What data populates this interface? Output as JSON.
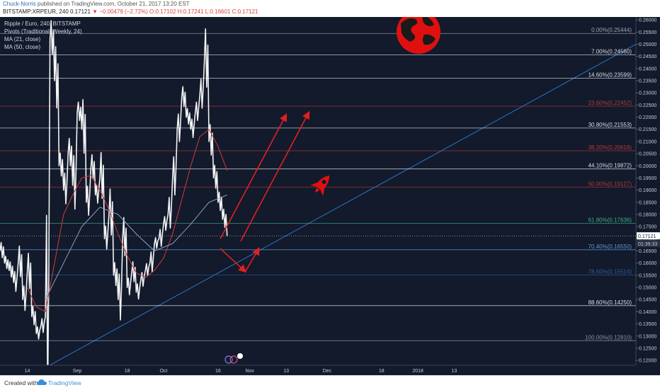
{
  "header": {
    "author": "Chuck-Norris",
    "published_text": "published on TradingView.com, October 21, 2017 13:20 EST",
    "symbol": "BITSTAMP:XRPEUR, 240",
    "last": "0.17121",
    "change": "−0.00479 (−2.72%)",
    "ohlc": "O:0.17102 H:0.17241 L:0.16601 C:0.17121"
  },
  "legend": {
    "title": "Ripple / Euro, 240, BITSTAMP",
    "pivots": "Pivots (Traditional, Weekly, 24)",
    "ma21": "MA (21, close)",
    "ma50": "MA (50, close)"
  },
  "footer": {
    "created_with": "Created with",
    "brand": "TradingView"
  },
  "colors": {
    "background": "#121a2b",
    "candle": "#ffffff",
    "ma21": "#d23b3b",
    "ma50": "#8aa0c8",
    "trendline": "#2f74c6",
    "arrow": "#e02020",
    "icon": "#e01010",
    "pivot_orange": "#d9822b",
    "pivot_blue": "#3a7fd6"
  },
  "price_axis": {
    "labels": [
      "0.26000",
      "0.25500",
      "0.25000",
      "0.24500",
      "0.24000",
      "0.23500",
      "0.23000",
      "0.22500",
      "0.22000",
      "0.21500",
      "0.21000",
      "0.20500",
      "0.20000",
      "0.19500",
      "0.19000",
      "0.18500",
      "0.18000",
      "0.17500",
      "0.17000",
      "0.16500",
      "0.16000",
      "0.15500",
      "0.15000",
      "0.14500",
      "0.14000",
      "0.13500",
      "0.13000",
      "0.12500",
      "0.12000"
    ],
    "current_price": "0.17121",
    "countdown": "01:39:33"
  },
  "time_axis": {
    "labels": [
      "14",
      "Sep",
      "18",
      "Oct",
      "16",
      "Nov",
      "13",
      "Dec",
      "18",
      "2018",
      "13"
    ]
  },
  "chart_data": {
    "type": "line",
    "title": "Ripple / Euro, 240, BITSTAMP",
    "xlabel": "",
    "ylabel": "",
    "ylim": [
      0.118,
      0.2612
    ],
    "xlim": [
      0,
      140
    ],
    "x_ticks": [
      {
        "x": 6,
        "label": "14"
      },
      {
        "x": 17,
        "label": "Sep"
      },
      {
        "x": 28,
        "label": "18"
      },
      {
        "x": 36,
        "label": "Oct"
      },
      {
        "x": 48,
        "label": "16"
      },
      {
        "x": 55,
        "label": "Nov"
      },
      {
        "x": 63,
        "label": "13"
      },
      {
        "x": 72,
        "label": "Dec"
      },
      {
        "x": 84,
        "label": "18"
      },
      {
        "x": 92,
        "label": "2018"
      },
      {
        "x": 100,
        "label": "13"
      }
    ],
    "series": [
      {
        "points": [
          [
            0,
            0.165
          ],
          [
            1,
            0.16
          ],
          [
            2,
            0.157
          ],
          [
            3,
            0.152
          ],
          [
            4,
            0.16
          ],
          [
            5,
            0.145
          ],
          [
            6,
            0.156
          ],
          [
            7,
            0.138
          ],
          [
            8,
            0.131
          ],
          [
            9,
            0.134
          ],
          [
            10,
            0.138
          ],
          [
            11,
            0.252
          ],
          [
            12,
            0.235
          ],
          [
            13,
            0.2
          ],
          [
            14,
            0.19
          ],
          [
            15,
            0.205
          ],
          [
            16,
            0.192
          ],
          [
            17,
            0.222
          ],
          [
            18,
            0.215
          ],
          [
            19,
            0.185
          ],
          [
            20,
            0.199
          ],
          [
            21,
            0.188
          ],
          [
            22,
            0.195
          ],
          [
            23,
            0.17
          ],
          [
            24,
            0.18
          ],
          [
            25,
            0.155
          ],
          [
            26,
            0.145
          ],
          [
            27,
            0.17
          ],
          [
            28,
            0.15
          ],
          [
            29,
            0.156
          ],
          [
            30,
            0.148
          ],
          [
            31,
            0.153
          ],
          [
            32,
            0.157
          ],
          [
            33,
            0.16
          ],
          [
            34,
            0.168
          ],
          [
            35,
            0.17
          ],
          [
            36,
            0.176
          ],
          [
            37,
            0.18
          ],
          [
            38,
            0.195
          ],
          [
            39,
            0.215
          ],
          [
            40,
            0.228
          ],
          [
            41,
            0.22
          ],
          [
            42,
            0.215
          ],
          [
            43,
            0.222
          ],
          [
            44,
            0.229
          ],
          [
            45,
            0.243
          ],
          [
            46,
            0.21
          ],
          [
            47,
            0.195
          ],
          [
            48,
            0.185
          ],
          [
            49,
            0.178
          ],
          [
            50,
            0.1712
          ]
        ]
      },
      {
        "points": [
          [
            6,
            0.15
          ],
          [
            8,
            0.142
          ],
          [
            10,
            0.14
          ],
          [
            12,
            0.16
          ],
          [
            14,
            0.18
          ],
          [
            16,
            0.188
          ],
          [
            18,
            0.195
          ],
          [
            20,
            0.196
          ],
          [
            22,
            0.19
          ],
          [
            24,
            0.182
          ],
          [
            26,
            0.172
          ],
          [
            28,
            0.163
          ],
          [
            30,
            0.156
          ],
          [
            32,
            0.154
          ],
          [
            34,
            0.157
          ],
          [
            36,
            0.162
          ],
          [
            38,
            0.172
          ],
          [
            40,
            0.186
          ],
          [
            42,
            0.2
          ],
          [
            44,
            0.212
          ],
          [
            46,
            0.215
          ],
          [
            48,
            0.208
          ],
          [
            50,
            0.198
          ]
        ]
      },
      {
        "points": [
          [
            10,
            0.145
          ],
          [
            14,
            0.16
          ],
          [
            18,
            0.175
          ],
          [
            22,
            0.183
          ],
          [
            26,
            0.18
          ],
          [
            30,
            0.172
          ],
          [
            34,
            0.165
          ],
          [
            38,
            0.168
          ],
          [
            42,
            0.176
          ],
          [
            46,
            0.185
          ],
          [
            50,
            0.188
          ]
        ]
      }
    ],
    "fib_levels": [
      {
        "label": "0.00%(0.25444)",
        "price": 0.25444,
        "color": "#9aa3b2"
      },
      {
        "label": "7.00%(0.24560)",
        "price": 0.2456,
        "color": "#d9dde5"
      },
      {
        "label": "14.60%(0.23599)",
        "price": 0.23599,
        "color": "#d9dde5"
      },
      {
        "label": "23.60%(0.22452)",
        "price": 0.22452,
        "color": "#b43a3a"
      },
      {
        "label": "30.80%(0.21553)",
        "price": 0.21553,
        "color": "#d9dde5"
      },
      {
        "label": "38.20%(0.20618)",
        "price": 0.20618,
        "color": "#b43a3a"
      },
      {
        "label": "44.10%(0.19872)",
        "price": 0.19872,
        "color": "#d9dde5"
      },
      {
        "label": "50.00%(0.19127)",
        "price": 0.19127,
        "color": "#b43a3a"
      },
      {
        "label": "61.80%(0.17636)",
        "price": 0.17636,
        "color": "#3fae8a"
      },
      {
        "label": "70.40%(0.16550)",
        "price": 0.1655,
        "color": "#5b9bd5"
      },
      {
        "label": "78.60%(0.15514)",
        "price": 0.15514,
        "color": "#2f5e9e"
      },
      {
        "label": "88.60%(0.14250)",
        "price": 0.1425,
        "color": "#d9dde5"
      },
      {
        "label": "100.00%(0.12810)",
        "price": 0.1281,
        "color": "#8a93a3"
      }
    ],
    "trendline": [
      [
        8,
        0.115
      ],
      [
        140,
        0.25
      ]
    ],
    "arrows": [
      [
        [
          48.5,
          0.166
        ],
        [
          54,
          0.1565
        ]
      ],
      [
        [
          54,
          0.1565
        ],
        [
          57,
          0.166
        ]
      ],
      [
        [
          48.5,
          0.17
        ],
        [
          63,
          0.221
        ]
      ],
      [
        [
          53,
          0.169
        ],
        [
          68,
          0.222
        ]
      ]
    ],
    "grid": false,
    "legend_position": "top-left"
  }
}
